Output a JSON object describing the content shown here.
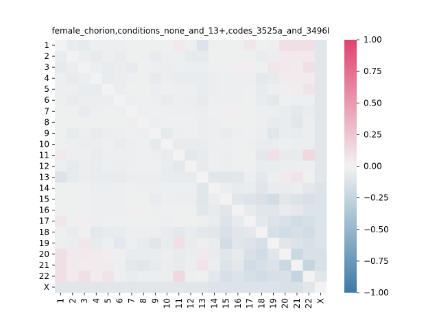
{
  "chart_data": {
    "type": "heatmap",
    "title": "female_chorion,conditions_none_and_13+,codes_3525a_and_3496I",
    "xlabel": "",
    "ylabel": "",
    "labels": [
      "1",
      "2",
      "3",
      "4",
      "5",
      "6",
      "7",
      "8",
      "9",
      "10",
      "11",
      "12",
      "13",
      "14",
      "15",
      "16",
      "17",
      "18",
      "19",
      "20",
      "21",
      "22",
      "X"
    ],
    "colorbar": {
      "vmin": -1.0,
      "vmax": 1.0,
      "ticks": [
        1.0,
        0.75,
        0.5,
        0.25,
        0.0,
        -0.25,
        -0.5,
        -0.75,
        -1.0
      ],
      "tick_labels": [
        "1.00",
        "0.75",
        "0.50",
        "0.25",
        "0.00",
        "−0.25",
        "−0.50",
        "−0.75",
        "−1.00"
      ],
      "low_color": "#3d7aa6",
      "mid_color": "#f2f2f2",
      "high_color": "#e0426f"
    },
    "matrix": [
      [
        0.0,
        -0.05,
        -0.07,
        -0.03,
        -0.03,
        -0.03,
        -0.02,
        -0.02,
        -0.02,
        -0.02,
        0.05,
        -0.03,
        -0.12,
        -0.02,
        -0.02,
        -0.02,
        0.06,
        -0.02,
        -0.03,
        0.1,
        0.1,
        0.1,
        -0.1
      ],
      [
        -0.05,
        0.0,
        -0.04,
        -0.06,
        -0.03,
        -0.05,
        -0.02,
        -0.02,
        -0.06,
        -0.03,
        -0.03,
        -0.07,
        -0.07,
        -0.02,
        -0.02,
        -0.02,
        -0.02,
        -0.05,
        -0.04,
        0.05,
        0.05,
        0.05,
        -0.1
      ],
      [
        -0.07,
        -0.04,
        0.0,
        -0.04,
        -0.05,
        -0.04,
        -0.06,
        -0.02,
        -0.03,
        -0.04,
        -0.03,
        -0.04,
        -0.04,
        -0.02,
        -0.02,
        0.02,
        0.02,
        -0.02,
        0.07,
        0.05,
        0.04,
        0.1,
        -0.1
      ],
      [
        -0.03,
        -0.06,
        -0.04,
        0.0,
        -0.05,
        -0.04,
        -0.03,
        -0.02,
        -0.06,
        -0.04,
        -0.05,
        -0.05,
        -0.05,
        -0.04,
        -0.03,
        -0.03,
        -0.03,
        -0.08,
        -0.06,
        0.04,
        0.04,
        0.04,
        -0.1
      ],
      [
        -0.03,
        -0.03,
        -0.05,
        -0.05,
        0.0,
        -0.04,
        -0.02,
        -0.02,
        -0.04,
        -0.02,
        -0.03,
        -0.03,
        -0.05,
        -0.04,
        -0.03,
        -0.03,
        -0.02,
        -0.06,
        -0.03,
        0.03,
        0.04,
        0.08,
        -0.1
      ],
      [
        -0.03,
        -0.05,
        -0.04,
        -0.04,
        -0.04,
        0.0,
        -0.03,
        -0.02,
        -0.03,
        -0.05,
        -0.03,
        -0.04,
        -0.06,
        -0.03,
        -0.03,
        -0.03,
        -0.02,
        -0.05,
        -0.08,
        -0.02,
        -0.03,
        -0.03,
        -0.1
      ],
      [
        -0.02,
        -0.02,
        -0.06,
        -0.03,
        -0.02,
        -0.03,
        0.0,
        -0.03,
        -0.02,
        -0.03,
        -0.03,
        -0.03,
        -0.04,
        -0.02,
        -0.02,
        0.02,
        -0.02,
        -0.03,
        -0.03,
        -0.05,
        -0.08,
        -0.05,
        -0.1
      ],
      [
        -0.02,
        -0.02,
        -0.02,
        -0.02,
        -0.02,
        -0.02,
        -0.03,
        0.0,
        -0.03,
        -0.02,
        -0.02,
        -0.02,
        -0.04,
        -0.03,
        -0.02,
        -0.02,
        -0.02,
        -0.03,
        -0.06,
        -0.05,
        -0.1,
        -0.04,
        -0.1
      ],
      [
        -0.02,
        -0.06,
        -0.03,
        -0.06,
        -0.04,
        -0.03,
        -0.02,
        -0.03,
        0.0,
        -0.07,
        -0.03,
        -0.02,
        -0.04,
        -0.03,
        -0.05,
        -0.03,
        -0.02,
        -0.04,
        -0.1,
        -0.05,
        -0.06,
        -0.04,
        -0.1
      ],
      [
        -0.02,
        -0.03,
        -0.04,
        -0.04,
        -0.02,
        -0.05,
        -0.03,
        -0.02,
        -0.07,
        0.0,
        -0.05,
        -0.05,
        -0.05,
        -0.03,
        -0.03,
        -0.02,
        -0.03,
        -0.05,
        -0.05,
        -0.03,
        -0.04,
        -0.04,
        -0.1
      ],
      [
        0.05,
        -0.03,
        -0.03,
        -0.05,
        -0.03,
        -0.03,
        -0.03,
        -0.02,
        -0.03,
        -0.05,
        0.0,
        -0.08,
        -0.06,
        -0.03,
        -0.04,
        -0.02,
        -0.02,
        -0.08,
        0.1,
        -0.06,
        -0.06,
        0.15,
        -0.1
      ],
      [
        -0.03,
        -0.07,
        -0.04,
        -0.05,
        -0.03,
        -0.04,
        -0.03,
        -0.02,
        -0.02,
        -0.05,
        -0.08,
        0.0,
        -0.06,
        -0.03,
        -0.04,
        -0.02,
        -0.02,
        -0.05,
        -0.05,
        -0.04,
        -0.04,
        -0.03,
        -0.1
      ],
      [
        -0.12,
        -0.07,
        -0.04,
        -0.05,
        -0.05,
        -0.06,
        -0.04,
        -0.04,
        -0.04,
        -0.05,
        -0.06,
        -0.06,
        0.0,
        -0.1,
        -0.1,
        -0.09,
        -0.03,
        -0.08,
        -0.03,
        0.05,
        0.08,
        -0.02,
        -0.1
      ],
      [
        -0.02,
        -0.02,
        -0.02,
        -0.04,
        -0.04,
        -0.03,
        -0.02,
        -0.03,
        -0.03,
        -0.03,
        -0.03,
        -0.03,
        -0.1,
        0.0,
        -0.04,
        -0.06,
        -0.05,
        -0.1,
        -0.05,
        -0.05,
        -0.04,
        -0.08,
        -0.12
      ],
      [
        -0.02,
        -0.02,
        -0.02,
        -0.03,
        -0.03,
        -0.03,
        -0.02,
        -0.02,
        -0.05,
        -0.03,
        -0.04,
        -0.04,
        -0.1,
        -0.04,
        0.0,
        -0.1,
        -0.12,
        -0.14,
        -0.18,
        -0.1,
        -0.12,
        -0.15,
        -0.12
      ],
      [
        -0.02,
        -0.02,
        -0.02,
        -0.03,
        -0.03,
        -0.03,
        0.02,
        -0.02,
        -0.03,
        -0.02,
        -0.02,
        -0.02,
        -0.09,
        -0.06,
        -0.1,
        0.0,
        -0.06,
        -0.1,
        -0.1,
        -0.06,
        -0.08,
        -0.12,
        -0.12
      ],
      [
        0.06,
        -0.02,
        0.02,
        -0.03,
        -0.02,
        -0.02,
        -0.02,
        -0.02,
        -0.02,
        -0.03,
        -0.02,
        -0.02,
        -0.03,
        -0.05,
        -0.12,
        -0.06,
        0.0,
        -0.08,
        -0.12,
        -0.14,
        -0.18,
        -0.16,
        -0.12
      ],
      [
        -0.02,
        -0.05,
        -0.02,
        -0.08,
        -0.06,
        -0.05,
        -0.03,
        -0.03,
        -0.04,
        -0.05,
        -0.08,
        -0.05,
        -0.08,
        -0.1,
        -0.14,
        -0.1,
        -0.08,
        0.0,
        -0.15,
        -0.18,
        -0.15,
        -0.18,
        -0.12
      ],
      [
        -0.03,
        -0.04,
        0.07,
        -0.06,
        -0.03,
        -0.08,
        -0.03,
        -0.06,
        -0.1,
        -0.05,
        0.1,
        -0.05,
        -0.03,
        -0.05,
        -0.18,
        -0.1,
        -0.12,
        -0.15,
        0.0,
        -0.1,
        -0.12,
        -0.15,
        -0.12
      ],
      [
        0.1,
        0.05,
        0.05,
        0.04,
        0.03,
        -0.02,
        -0.05,
        -0.05,
        -0.05,
        -0.03,
        -0.06,
        -0.04,
        0.05,
        -0.05,
        -0.1,
        -0.06,
        -0.14,
        -0.18,
        -0.1,
        0.0,
        -0.22,
        -0.14,
        -0.14
      ],
      [
        0.1,
        0.05,
        0.04,
        0.04,
        0.04,
        -0.03,
        -0.08,
        -0.1,
        -0.06,
        -0.04,
        -0.06,
        -0.04,
        0.08,
        -0.04,
        -0.12,
        -0.08,
        -0.18,
        -0.15,
        -0.12,
        -0.22,
        0.0,
        -0.25,
        -0.14
      ],
      [
        0.1,
        0.05,
        0.1,
        0.04,
        0.08,
        -0.03,
        -0.05,
        -0.04,
        -0.04,
        -0.04,
        0.15,
        -0.03,
        -0.02,
        -0.08,
        -0.15,
        -0.12,
        -0.16,
        -0.18,
        -0.15,
        -0.14,
        -0.25,
        0.0,
        -0.1
      ],
      [
        -0.1,
        -0.1,
        -0.1,
        -0.1,
        -0.1,
        -0.1,
        -0.1,
        -0.1,
        -0.1,
        -0.1,
        -0.1,
        -0.1,
        -0.1,
        -0.12,
        -0.12,
        -0.12,
        -0.12,
        -0.12,
        -0.12,
        -0.14,
        -0.14,
        -0.1,
        0.0
      ]
    ]
  }
}
